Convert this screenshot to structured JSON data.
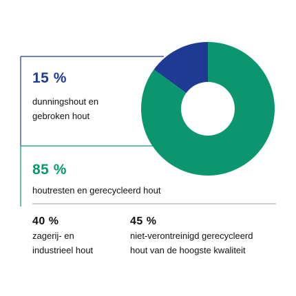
{
  "chart_data": {
    "type": "pie",
    "style": "donut",
    "values": [
      15,
      85
    ],
    "colors": [
      "#1f3a93",
      "#0b9670"
    ],
    "legend": [
      {
        "value_label": "15 %",
        "label": "dunningshout en\ngebroken hout",
        "color": "#1f3a93"
      },
      {
        "value_label": "85 %",
        "label": "houtresten en gerecycleerd hout",
        "color": "#0b9670"
      }
    ],
    "breakdown": [
      {
        "value": 40,
        "value_label": "40 %",
        "label": "zagerij- en\nindustrieel hout"
      },
      {
        "value": 45,
        "value_label": "45 %",
        "label": "niet-verontreinigd gerecycleerd\nhout van de hoogste kwaliteit"
      }
    ]
  },
  "colors": {
    "blue": "#1f3a93",
    "green": "#0b9670",
    "divider": "#999999",
    "text": "#111111"
  }
}
